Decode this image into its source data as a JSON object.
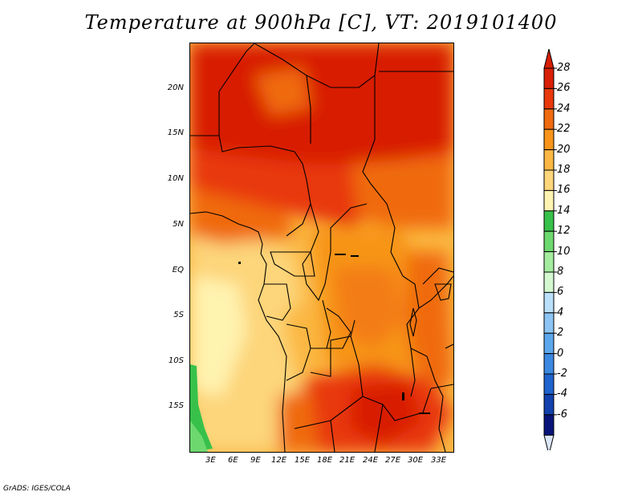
{
  "title": "Temperature at 900hPa [C], VT: 2019101400",
  "credit": "GrADS: IGES/COLA",
  "map": {
    "lat_labels": [
      "20N",
      "15N",
      "10N",
      "5N",
      "EQ",
      "5S",
      "10S",
      "15S"
    ],
    "lon_labels": [
      "3E",
      "6E",
      "9E",
      "12E",
      "15E",
      "18E",
      "21E",
      "24E",
      "27E",
      "30E",
      "33E"
    ],
    "field": "Temperature at 900hPa",
    "units": "C"
  },
  "colorbar": {
    "labels": [
      "28",
      "26",
      "24",
      "22",
      "20",
      "18",
      "16",
      "14",
      "12",
      "10",
      "8",
      "6",
      "4",
      "2",
      "0",
      "-2",
      "-4",
      "-6"
    ],
    "colors": [
      "#d81e05",
      "#e8380c",
      "#f06a0f",
      "#f79419",
      "#fbb743",
      "#fdd57a",
      "#fff3b0",
      "#37c14a",
      "#6cd86e",
      "#a3ec9f",
      "#d3f8d0",
      "#b9dffb",
      "#8cc4f4",
      "#5ca6ec",
      "#3a88e0",
      "#1f63cf",
      "#1240ad",
      "#08147a"
    ],
    "top_tip_color": "#d81e05",
    "bottom_tip_color": "#dce7fb"
  }
}
